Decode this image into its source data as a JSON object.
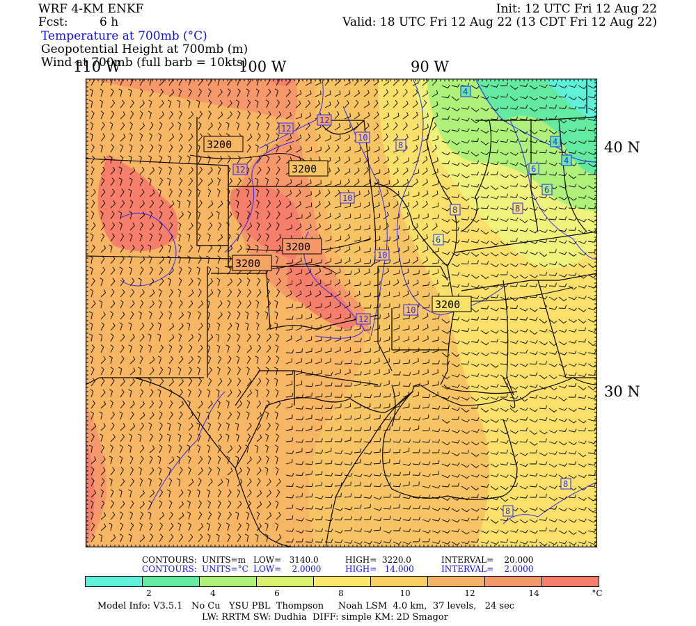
{
  "header": {
    "model": "WRF 4-KM ENKF",
    "fcst_label": "Fcst:",
    "fcst_value": "6 h",
    "init": "Init: 12 UTC Fri 12 Aug 22",
    "valid": "Valid: 18 UTC Fri 12 Aug 22 (13 CDT Fri 12 Aug 22)",
    "field1": "Temperature at 700mb (°C)",
    "field2": "Geopotential Height at 700mb (m)",
    "field3": "Wind at 700mb (full barb = 10kts)"
  },
  "map": {
    "lon_labels": [
      "110 W",
      "100 W",
      "90 W"
    ],
    "lat_labels": [
      "40 N",
      "30 N"
    ],
    "height_labels": [
      "3200",
      "3200",
      "3200",
      "3200",
      "3200"
    ],
    "temp_labels": [
      "12",
      "12",
      "12",
      "12",
      "10",
      "10",
      "10",
      "10",
      "8",
      "8",
      "8",
      "6",
      "6",
      "6",
      "4",
      "4",
      "4",
      "8",
      "8"
    ],
    "colors": {
      "t14": "#f57f6a",
      "t12": "#f5a463",
      "t10": "#f7c463",
      "t8": "#f9e96b",
      "t6": "#aef07a",
      "t4": "#64e9a0",
      "t2": "#5ef0d8",
      "height_contour": "#000000",
      "temp_contour": "#2a2aff",
      "border": "#000000"
    }
  },
  "contours_info": {
    "height": {
      "label": "CONTOURS:",
      "units": "UNITS=m",
      "low": "LOW=   3140.0",
      "high": "HIGH=  3220.0",
      "interval": "INTERVAL=    20.000"
    },
    "temp": {
      "label": "CONTOURS:",
      "units": "UNITS=°C",
      "low": "LOW=    2.0000",
      "high": "HIGH=   14.000",
      "interval": "INTERVAL=    2.0000"
    }
  },
  "colorbar": {
    "colors": [
      "#5ef0d8",
      "#64e9a0",
      "#aef07a",
      "#d8f06e",
      "#f9e96b",
      "#f7d062",
      "#f5b463",
      "#f5986a",
      "#f57f6a"
    ],
    "tick_labels": [
      "2",
      "4",
      "6",
      "8",
      "10",
      "12",
      "14"
    ],
    "unit": "°C"
  },
  "footer": {
    "line1": "Model Info: V3.5.1   No Cu   YSU PBL  Thompson     Noah LSM  4.0 km,  37 levels,   24 sec",
    "line2": "LW: RRTM SW: Dudhia  DIFF: simple KM: 2D Smagor"
  }
}
